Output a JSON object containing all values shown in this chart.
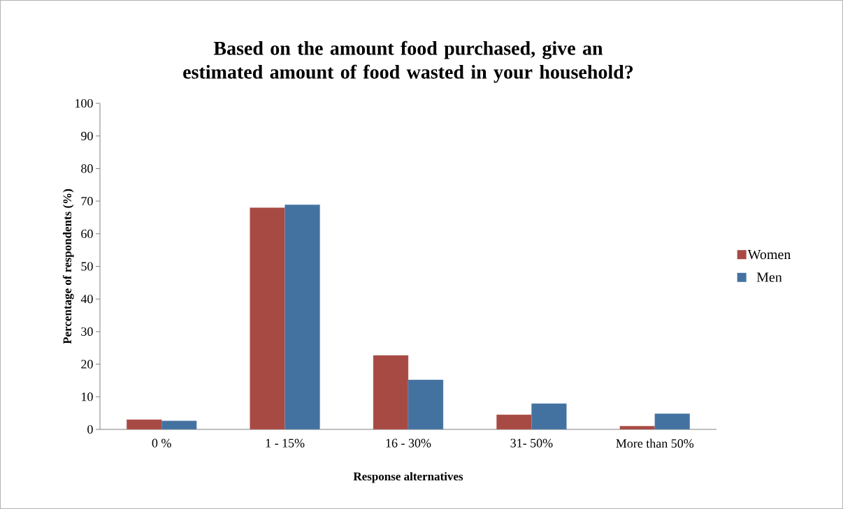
{
  "chart_data": {
    "type": "bar",
    "title": "Based on the amount food purchased, give an estimated amount of food wasted in your household?",
    "xlabel": "Response alternatives",
    "ylabel": "Percentage of respondents (%)",
    "categories": [
      "0 %",
      "1 - 15%",
      "16 - 30%",
      "31- 50%",
      "More than 50%"
    ],
    "series": [
      {
        "name": "Women",
        "color": "#a84a44",
        "values": [
          3,
          68,
          22.7,
          4.5,
          1
        ]
      },
      {
        "name": "Men",
        "color": "#4472a0",
        "values": [
          2.6,
          68.9,
          15.2,
          7.9,
          4.8
        ]
      }
    ],
    "ylim": [
      0,
      100
    ],
    "yticks": [
      0,
      10,
      20,
      30,
      40,
      50,
      60,
      70,
      80,
      90,
      100
    ],
    "grid": false,
    "legend": "right"
  }
}
